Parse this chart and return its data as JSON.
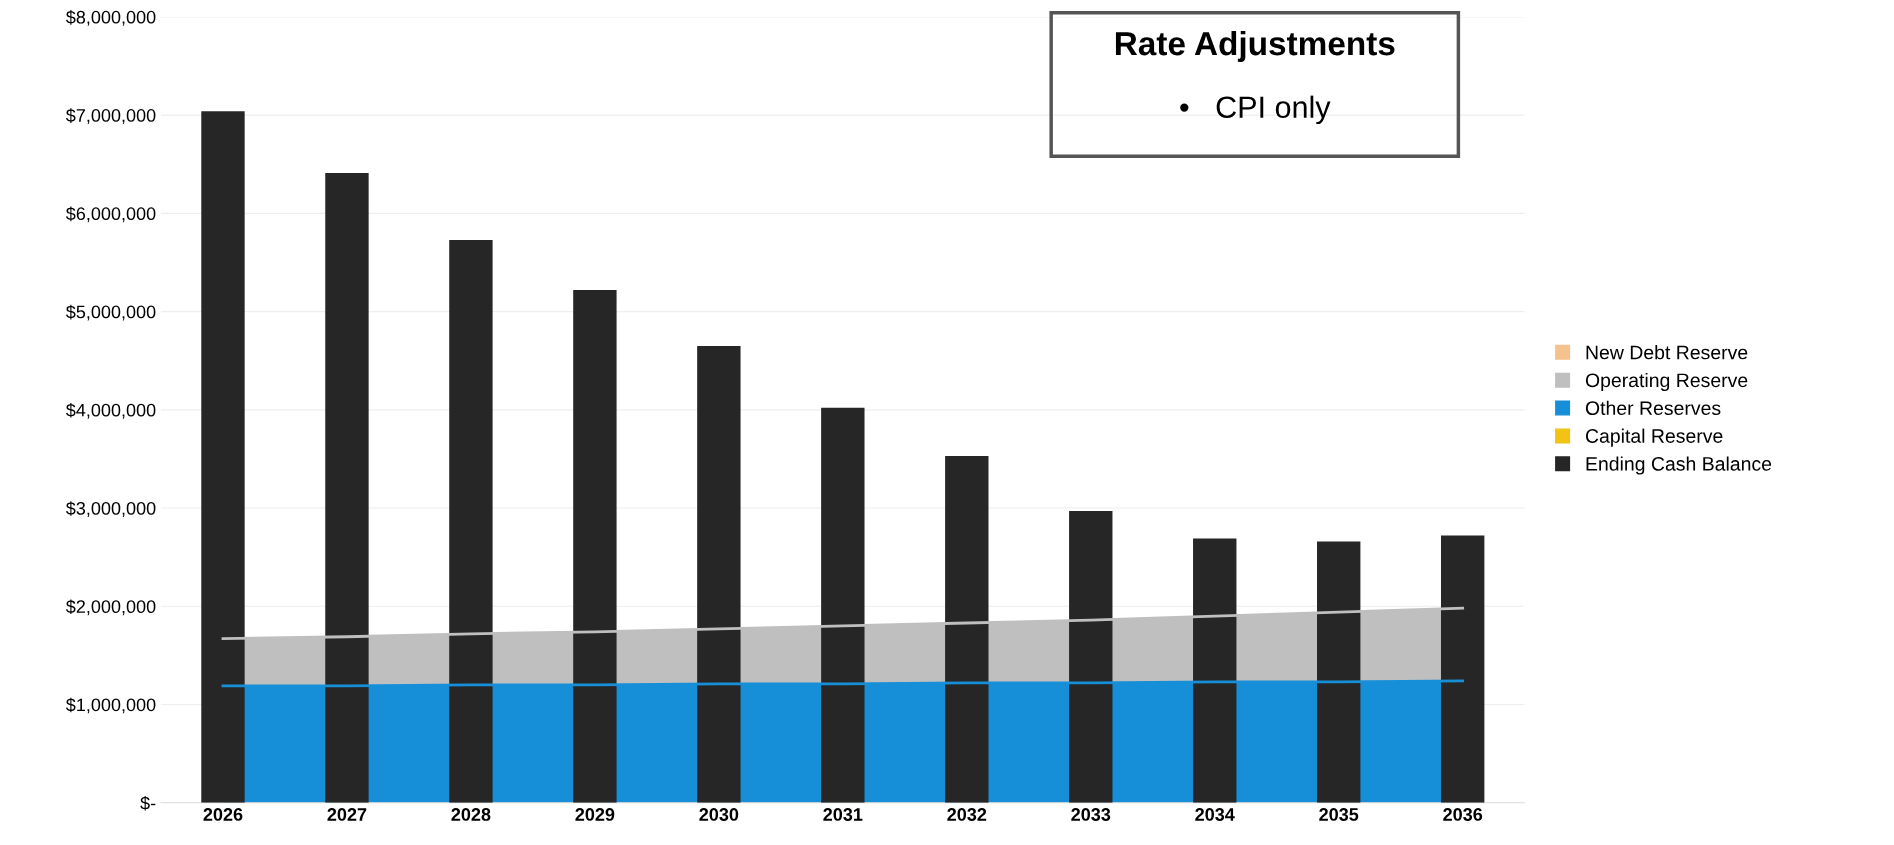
{
  "chart_data": {
    "type": "area",
    "categories": [
      "2026",
      "2027",
      "2028",
      "2029",
      "2030",
      "2031",
      "2032",
      "2033",
      "2034",
      "2035",
      "2036"
    ],
    "series": [
      {
        "name": "New Debt Reserve",
        "color": "#f5c28e",
        "values": [
          null,
          null,
          null,
          null,
          null,
          null,
          null,
          null,
          null,
          null,
          null
        ]
      },
      {
        "name": "Operating Reserve",
        "color": "#bfbfbf",
        "values": [
          1670000,
          1690000,
          1720000,
          1740000,
          1770000,
          1800000,
          1830000,
          1860000,
          1900000,
          1940000,
          1980000
        ]
      },
      {
        "name": "Other Reserves",
        "color": "#168fd8",
        "values": [
          1190000,
          1190000,
          1200000,
          1200000,
          1210000,
          1210000,
          1220000,
          1220000,
          1230000,
          1230000,
          1240000
        ]
      },
      {
        "name": "Capital Reserve",
        "color": "#f2c314",
        "values": [
          null,
          null,
          null,
          null,
          null,
          null,
          null,
          null,
          null,
          null,
          null
        ]
      },
      {
        "name": "Ending Cash Balance",
        "type": "bar",
        "color": "#262626",
        "values": [
          7040000,
          6410000,
          5730000,
          5220000,
          4650000,
          4020000,
          3530000,
          2970000,
          2690000,
          2660000,
          2720000
        ]
      }
    ],
    "ylim": [
      0,
      8000000
    ],
    "yticks": [
      {
        "value": 0,
        "label": "$-"
      },
      {
        "value": 1000000,
        "label": "$1,000,000"
      },
      {
        "value": 2000000,
        "label": "$2,000,000"
      },
      {
        "value": 3000000,
        "label": "$3,000,000"
      },
      {
        "value": 4000000,
        "label": "$4,000,000"
      },
      {
        "value": 5000000,
        "label": "$5,000,000"
      },
      {
        "value": 6000000,
        "label": "$6,000,000"
      },
      {
        "value": 7000000,
        "label": "$7,000,000"
      },
      {
        "value": 8000000,
        "label": "$8,000,000"
      }
    ],
    "grid": "y",
    "legend": "right",
    "annotations": [
      "Rate Adjustments",
      "•   CPI only"
    ]
  }
}
